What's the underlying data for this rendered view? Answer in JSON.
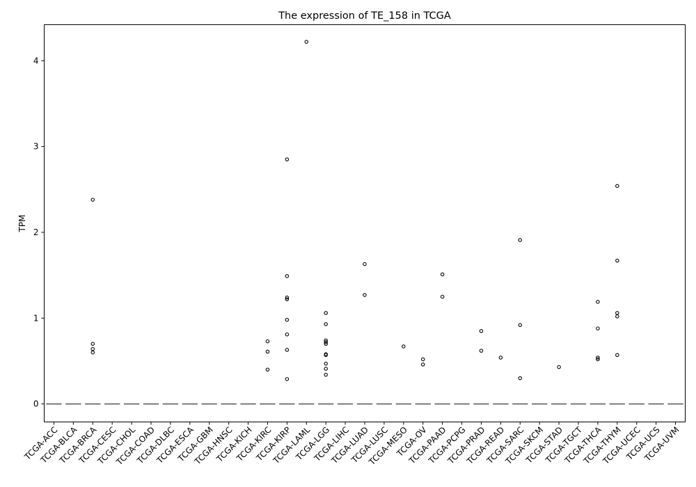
{
  "chart_data": {
    "type": "box",
    "title": "The expression of TE_158 in TCGA",
    "xlabel": "",
    "ylabel": "TPM",
    "ylim": [
      -0.21,
      4.42
    ],
    "yticks": [
      0,
      1,
      2,
      3,
      4
    ],
    "grid": false,
    "legend": "none",
    "median_color": "#555555",
    "categories": [
      "TCGA-ACC",
      "TCGA-BLCA",
      "TCGA-BRCA",
      "TCGA-CESC",
      "TCGA-CHOL",
      "TCGA-COAD",
      "TCGA-DLBC",
      "TCGA-ESCA",
      "TCGA-GBM",
      "TCGA-HNSC",
      "TCGA-KICH",
      "TCGA-KIRC",
      "TCGA-KIRP",
      "TCGA-LAML",
      "TCGA-LGG",
      "TCGA-LIHC",
      "TCGA-LUAD",
      "TCGA-LUSC",
      "TCGA-MESO",
      "TCGA-OV",
      "TCGA-PAAD",
      "TCGA-PCPG",
      "TCGA-PRAD",
      "TCGA-READ",
      "TCGA-SARC",
      "TCGA-SKCM",
      "TCGA-STAD",
      "TCGA-TGCT",
      "TCGA-THCA",
      "TCGA-THYM",
      "TCGA-UCEC",
      "TCGA-UCS",
      "TCGA-UVM"
    ],
    "medians": [
      0,
      0,
      0,
      0,
      0,
      0,
      0,
      0,
      0,
      0,
      0,
      0,
      0,
      0,
      0,
      0,
      0,
      0,
      0,
      0,
      0,
      0,
      0,
      0,
      0,
      0,
      0,
      0,
      0,
      0,
      0,
      0,
      0
    ],
    "outliers": [
      [],
      [],
      [
        2.38,
        0.7,
        0.64,
        0.6
      ],
      [],
      [],
      [],
      [],
      [],
      [],
      [],
      [],
      [
        0.73,
        0.61,
        0.4
      ],
      [
        2.85,
        1.49,
        1.24,
        1.22,
        0.98,
        0.81,
        0.63,
        0.29
      ],
      [
        4.22
      ],
      [
        1.06,
        0.93,
        0.74,
        0.72,
        0.7,
        0.58,
        0.57,
        0.47,
        0.41,
        0.34
      ],
      [],
      [
        1.63,
        1.27
      ],
      [],
      [
        0.67
      ],
      [
        0.52,
        0.46
      ],
      [
        1.51,
        1.25
      ],
      [],
      [
        0.85,
        0.62
      ],
      [
        0.54
      ],
      [
        1.91,
        0.92,
        0.3
      ],
      [],
      [
        0.43
      ],
      [],
      [
        1.19,
        0.88,
        0.54,
        0.52
      ],
      [
        2.54,
        1.67,
        1.06,
        1.02,
        0.57
      ],
      [],
      [],
      []
    ]
  }
}
